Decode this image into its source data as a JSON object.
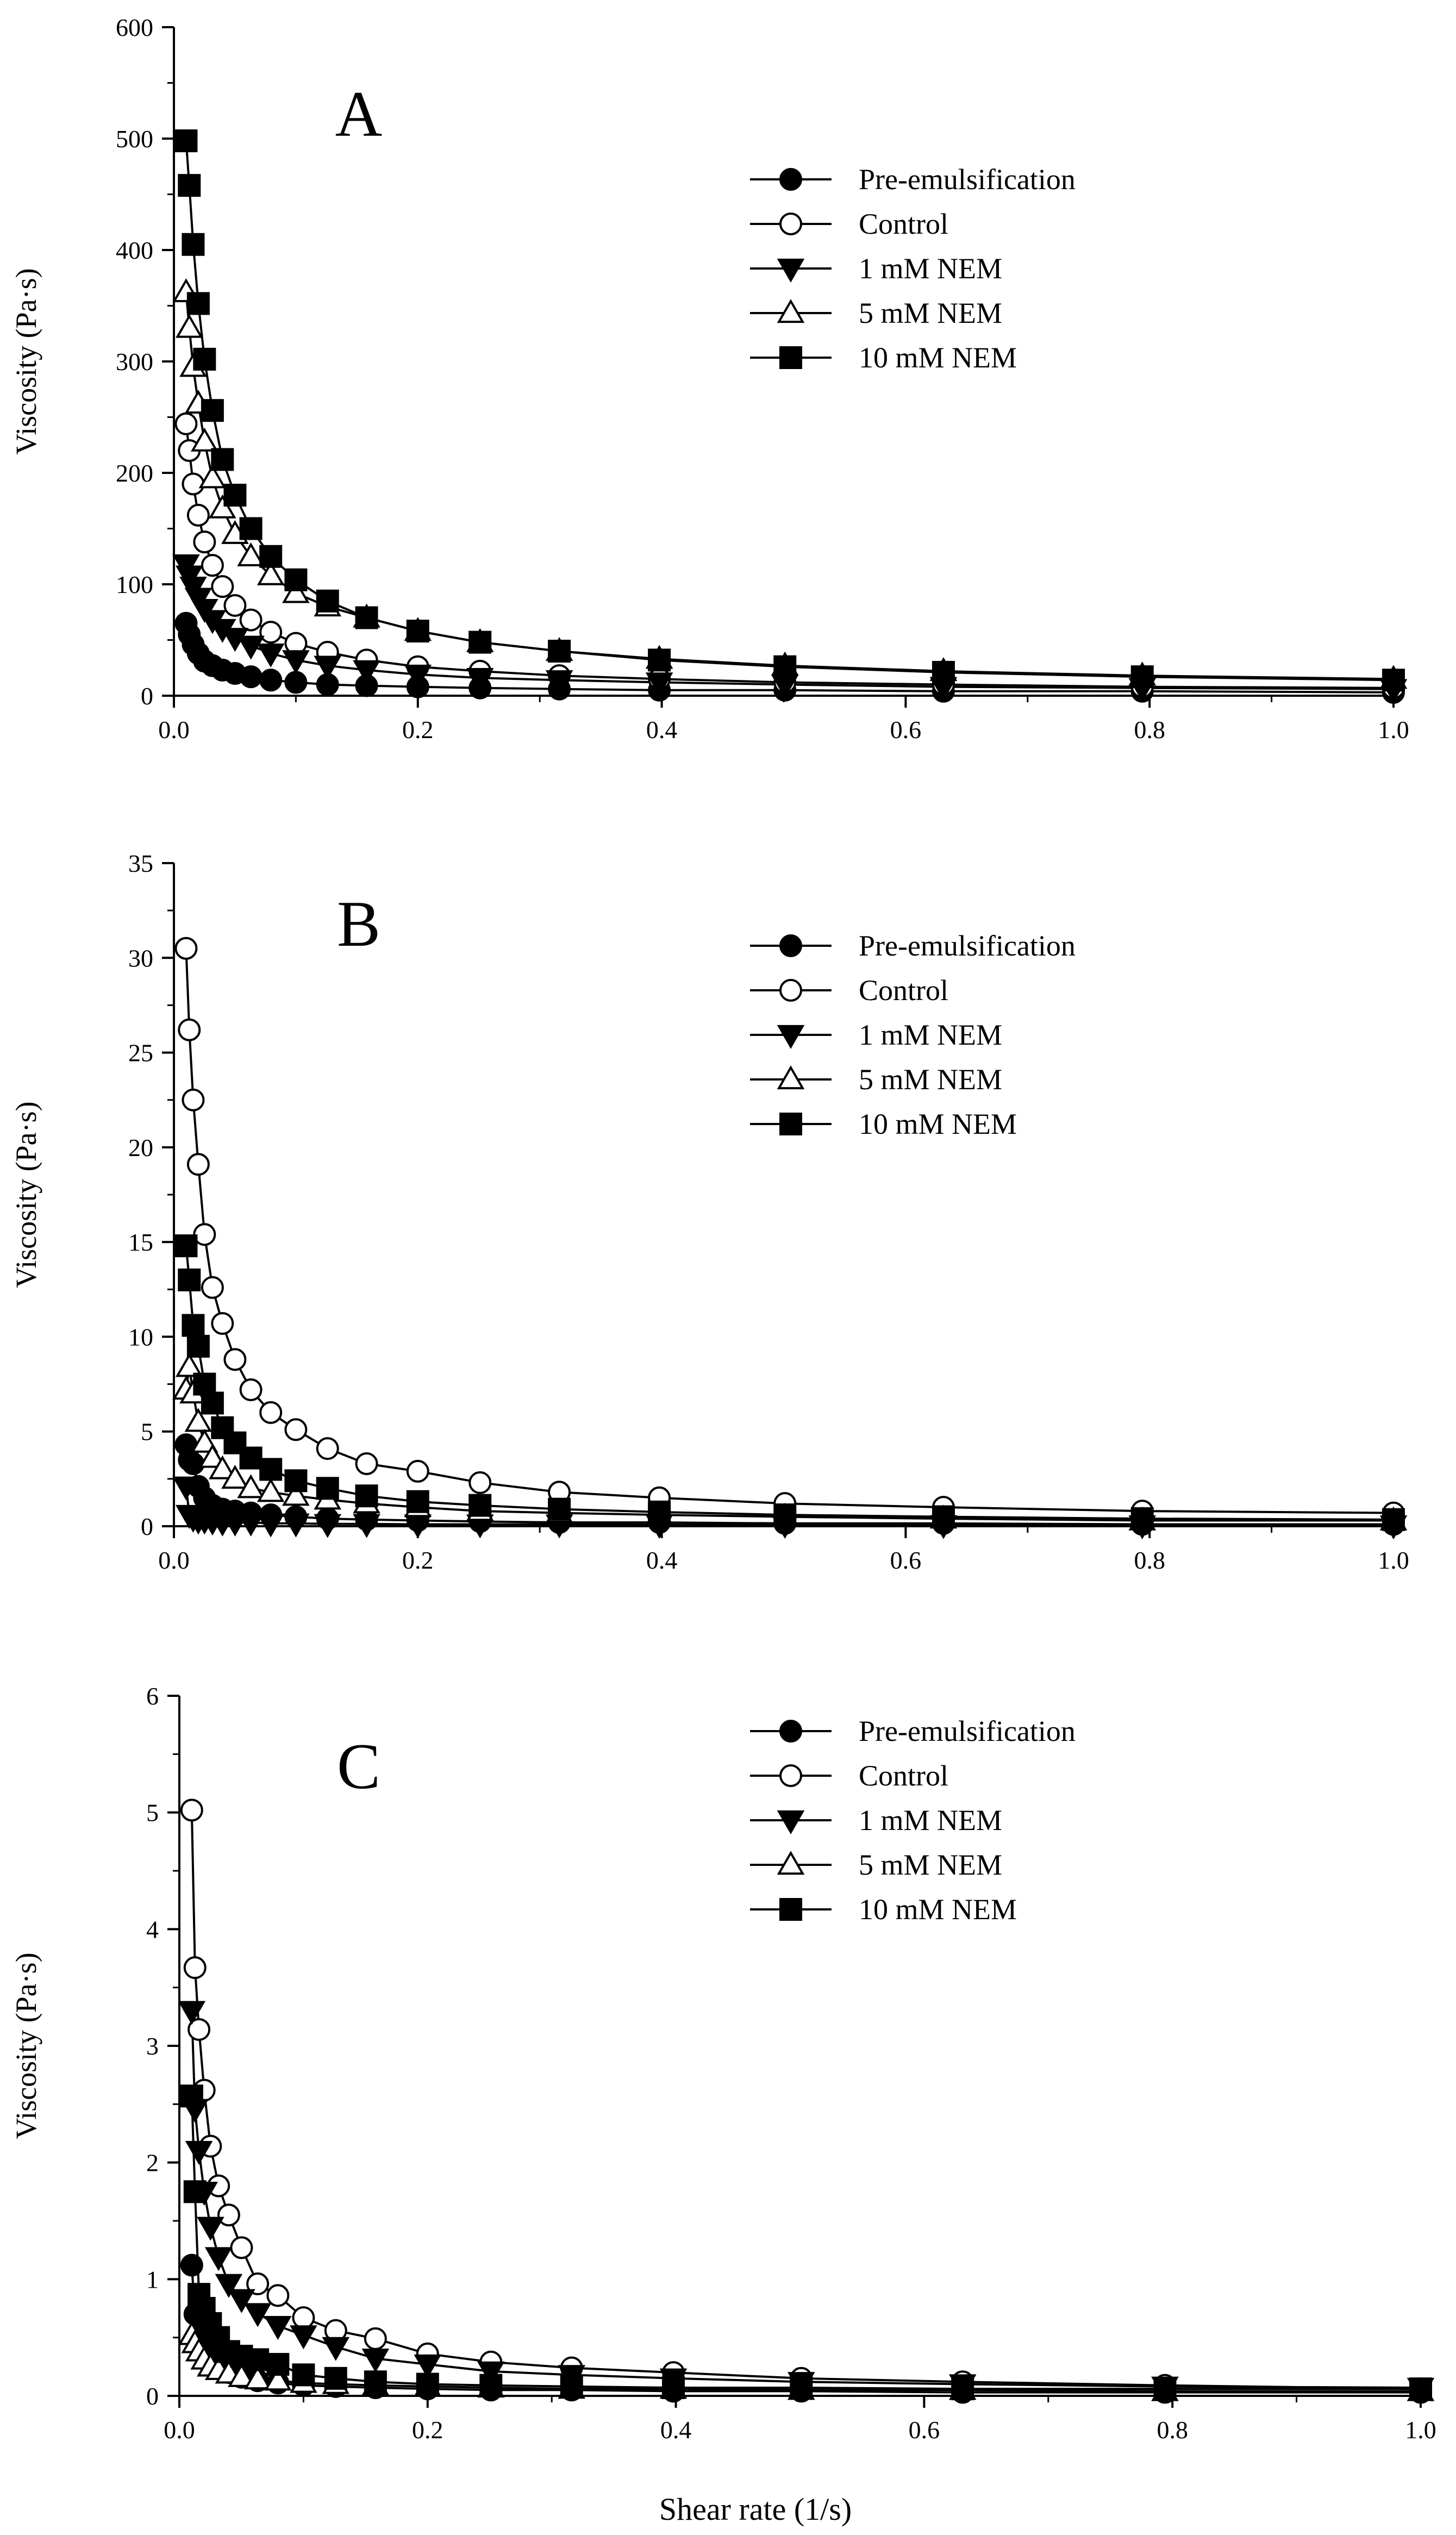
{
  "shared_xlabel": "Shear rate (1/s)",
  "legend_entries": [
    "Pre-emulsification",
    "Control",
    "1 mM NEM",
    "5 mM NEM",
    "10 mM NEM"
  ],
  "chart_data": [
    {
      "panel": "A",
      "type": "line",
      "ylabel": "Viscosity (Pa·s)",
      "xlim": [
        0,
        1.0
      ],
      "ylim": [
        0,
        600
      ],
      "xticks": [
        "0.0",
        "0.2",
        "0.4",
        "0.6",
        "0.8",
        "1.0"
      ],
      "yticks": [
        "0",
        "100",
        "200",
        "300",
        "400",
        "500",
        "600"
      ],
      "legend_position": "top-right",
      "x": [
        0.01,
        0.0126,
        0.0158,
        0.02,
        0.0251,
        0.0316,
        0.0398,
        0.0501,
        0.0631,
        0.0794,
        0.1,
        0.126,
        0.158,
        0.2,
        0.251,
        0.316,
        0.398,
        0.501,
        0.631,
        0.794,
        1.0
      ],
      "series": [
        {
          "name": "Pre-emulsification",
          "marker": "filled-circle",
          "values": [
            65,
            55,
            46,
            38,
            31,
            27,
            23,
            20,
            17,
            14,
            12,
            10,
            9,
            8,
            7,
            6,
            5,
            5,
            4,
            4,
            3
          ]
        },
        {
          "name": "Control",
          "marker": "open-circle",
          "values": [
            244,
            220,
            190,
            162,
            138,
            117,
            98,
            81,
            68,
            57,
            47,
            39,
            32,
            26,
            22,
            18,
            15,
            12,
            10,
            8,
            7
          ]
        },
        {
          "name": "1 mM NEM",
          "marker": "filled-triangle-down",
          "values": [
            118,
            108,
            98,
            88,
            78,
            68,
            60,
            52,
            45,
            38,
            32,
            27,
            23,
            19,
            16,
            14,
            12,
            10,
            8,
            7,
            6
          ]
        },
        {
          "name": "5 mM NEM",
          "marker": "open-triangle-up",
          "values": [
            362,
            330,
            295,
            262,
            228,
            195,
            168,
            145,
            125,
            108,
            92,
            80,
            70,
            58,
            48,
            40,
            33,
            27,
            22,
            18,
            15
          ]
        },
        {
          "name": "10 mM NEM",
          "marker": "filled-square",
          "values": [
            498,
            458,
            405,
            352,
            302,
            256,
            212,
            180,
            150,
            125,
            104,
            85,
            70,
            58,
            48,
            40,
            32,
            26,
            21,
            17,
            14
          ]
        }
      ]
    },
    {
      "panel": "B",
      "type": "line",
      "ylabel": "Viscosity (Pa·s)",
      "xlim": [
        0,
        1.0
      ],
      "ylim": [
        0,
        35
      ],
      "xticks": [
        "0.0",
        "0.2",
        "0.4",
        "0.6",
        "0.8",
        "1.0"
      ],
      "yticks": [
        "0",
        "5",
        "10",
        "15",
        "20",
        "25",
        "30",
        "35"
      ],
      "legend_position": "top-right",
      "x": [
        0.01,
        0.0126,
        0.0158,
        0.02,
        0.0251,
        0.0316,
        0.0398,
        0.0501,
        0.0631,
        0.0794,
        0.1,
        0.126,
        0.158,
        0.2,
        0.251,
        0.316,
        0.398,
        0.501,
        0.631,
        0.794,
        1.0
      ],
      "series": [
        {
          "name": "Pre-emulsification",
          "marker": "filled-circle",
          "values": [
            4.3,
            3.5,
            3.3,
            2.1,
            1.5,
            1.1,
            0.9,
            0.8,
            0.7,
            0.6,
            0.5,
            0.4,
            0.35,
            0.3,
            0.25,
            0.2,
            0.2,
            0.15,
            0.15,
            0.1,
            0.1
          ]
        },
        {
          "name": "Control",
          "marker": "open-circle",
          "values": [
            30.5,
            26.2,
            22.5,
            19.1,
            15.4,
            12.6,
            10.7,
            8.8,
            7.2,
            6.0,
            5.1,
            4.1,
            3.3,
            2.9,
            2.3,
            1.8,
            1.5,
            1.2,
            1.0,
            0.8,
            0.7
          ]
        },
        {
          "name": "1 mM NEM",
          "marker": "filled-triangle-down",
          "values": [
            2.1,
            0.6,
            0.4,
            0.3,
            0.3,
            0.25,
            0.2,
            0.2,
            0.2,
            0.15,
            0.15,
            0.12,
            0.12,
            0.1,
            0.1,
            0.1,
            0.08,
            0.08,
            0.06,
            0.05,
            0.05
          ]
        },
        {
          "name": "5 mM NEM",
          "marker": "open-triangle-up",
          "values": [
            7.2,
            8.4,
            7.0,
            5.5,
            4.4,
            3.6,
            3.0,
            2.5,
            2.0,
            1.8,
            1.6,
            1.4,
            1.2,
            1.0,
            0.8,
            0.7,
            0.6,
            0.5,
            0.4,
            0.3,
            0.3
          ]
        },
        {
          "name": "10 mM NEM",
          "marker": "filled-square",
          "values": [
            14.8,
            13.0,
            10.6,
            9.5,
            7.5,
            6.5,
            5.2,
            4.4,
            3.6,
            3.0,
            2.4,
            2.0,
            1.6,
            1.3,
            1.1,
            0.9,
            0.75,
            0.6,
            0.5,
            0.4,
            0.35
          ]
        }
      ]
    },
    {
      "panel": "C",
      "type": "line",
      "ylabel": "Viscosity (Pa·s)",
      "xlabel": "Shear rate (1/s)",
      "xlim": [
        0,
        1.0
      ],
      "ylim": [
        0,
        6
      ],
      "xticks": [
        "0.0",
        "0.2",
        "0.4",
        "0.6",
        "0.8",
        "1.0"
      ],
      "yticks": [
        "0",
        "1",
        "2",
        "3",
        "4",
        "5",
        "6"
      ],
      "legend_position": "top-right",
      "x": [
        0.01,
        0.0126,
        0.0158,
        0.02,
        0.0251,
        0.0316,
        0.0398,
        0.0501,
        0.0631,
        0.0794,
        0.1,
        0.126,
        0.158,
        0.2,
        0.251,
        0.316,
        0.398,
        0.501,
        0.631,
        0.794,
        1.0
      ],
      "series": [
        {
          "name": "Pre-emulsification",
          "marker": "filled-circle",
          "values": [
            1.12,
            0.7,
            0.55,
            0.42,
            0.33,
            0.25,
            0.2,
            0.16,
            0.13,
            0.11,
            0.09,
            0.08,
            0.07,
            0.06,
            0.05,
            0.05,
            0.04,
            0.04,
            0.03,
            0.03,
            0.03
          ]
        },
        {
          "name": "Control",
          "marker": "open-circle",
          "values": [
            5.02,
            3.67,
            3.14,
            2.62,
            2.14,
            1.8,
            1.55,
            1.27,
            0.96,
            0.86,
            0.67,
            0.56,
            0.49,
            0.36,
            0.29,
            0.24,
            0.2,
            0.15,
            0.12,
            0.09,
            0.06
          ]
        },
        {
          "name": "1 mM NEM",
          "marker": "filled-triangle-down",
          "values": [
            3.3,
            2.46,
            2.1,
            1.75,
            1.45,
            1.19,
            0.96,
            0.83,
            0.71,
            0.6,
            0.52,
            0.42,
            0.32,
            0.27,
            0.21,
            0.18,
            0.15,
            0.12,
            0.1,
            0.08,
            0.07
          ]
        },
        {
          "name": "5 mM NEM",
          "marker": "open-triangle-up",
          "values": [
            0.52,
            0.45,
            0.38,
            0.31,
            0.25,
            0.22,
            0.19,
            0.16,
            0.14,
            0.13,
            0.11,
            0.1,
            0.09,
            0.08,
            0.07,
            0.06,
            0.06,
            0.05,
            0.05,
            0.04,
            0.04
          ]
        },
        {
          "name": "10 mM NEM",
          "marker": "filled-square",
          "values": [
            2.57,
            1.75,
            0.87,
            0.75,
            0.62,
            0.5,
            0.38,
            0.34,
            0.31,
            0.27,
            0.18,
            0.15,
            0.12,
            0.1,
            0.09,
            0.08,
            0.07,
            0.07,
            0.06,
            0.06,
            0.06
          ]
        }
      ]
    }
  ]
}
